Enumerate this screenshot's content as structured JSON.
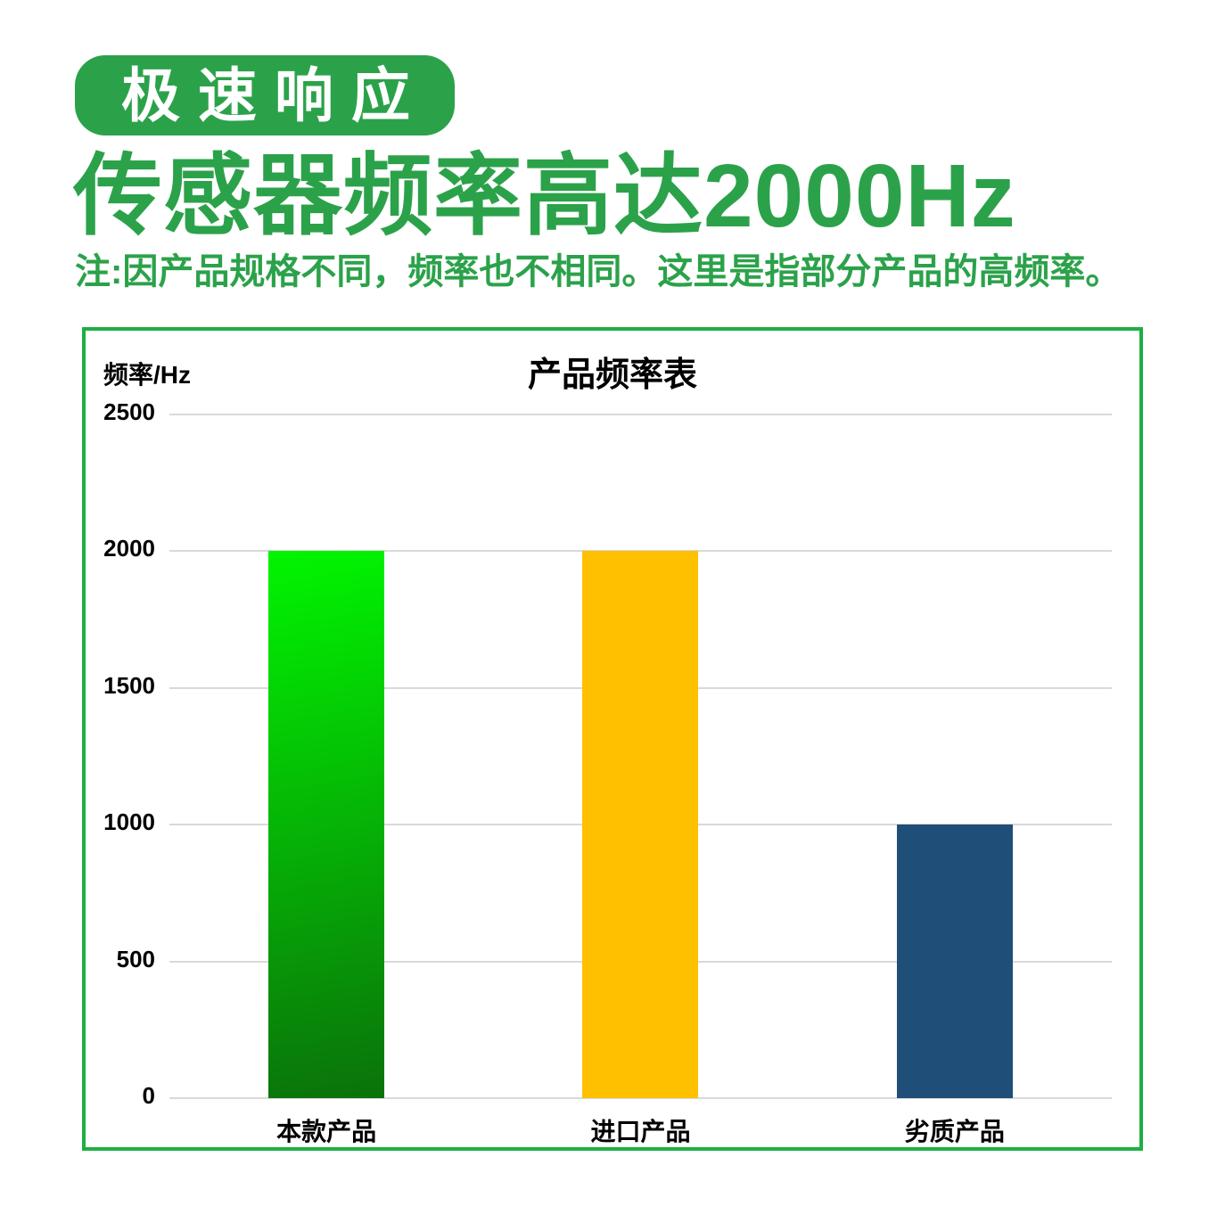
{
  "page": {
    "badge_label": "极速响应",
    "heading": "传感器频率高达2000Hz",
    "note": "注:因产品规格不同，频率也不相同。这里是指部分产品的高频率。",
    "colors": {
      "brand_green": "#2ba24a",
      "badge_bg": "#2ba24a",
      "badge_text": "#ffffff",
      "chart_border": "#1daf42",
      "gridline": "#d9d9d9",
      "title_text": "#000000"
    }
  },
  "chart_data": {
    "type": "bar",
    "title": "产品频率表",
    "ylabel": "频率/Hz",
    "xlabel": "",
    "categories": [
      "本款产品",
      "进口产品",
      "劣质产品"
    ],
    "values": [
      2000,
      2000,
      1000
    ],
    "ylim": [
      0,
      2500
    ],
    "yticks": [
      0,
      500,
      1000,
      1500,
      2000,
      2500
    ],
    "grid": true,
    "legend": "none",
    "bar_fills": [
      {
        "type": "gradient",
        "from": "#01f501",
        "to": "#0a720a"
      },
      {
        "type": "solid",
        "color": "#ffc000"
      },
      {
        "type": "solid",
        "color": "#1f4e79"
      }
    ]
  }
}
